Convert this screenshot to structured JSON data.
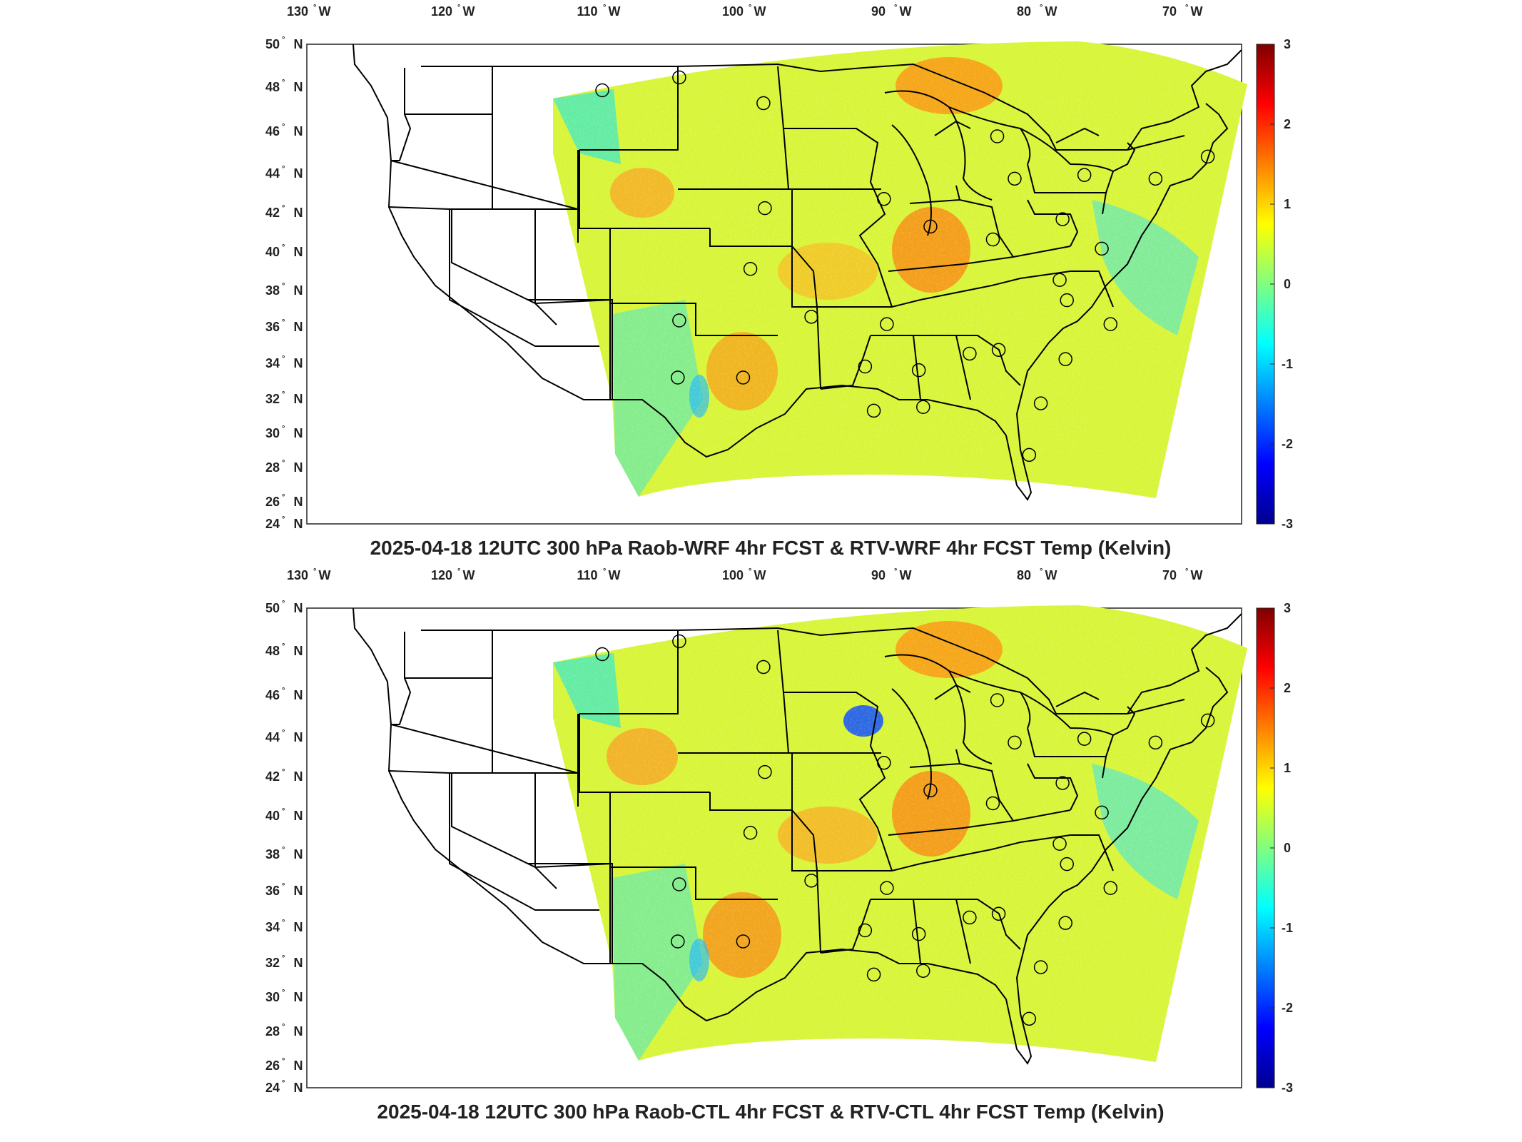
{
  "panels": [
    {
      "title": "2025-04-18 12UTC 300 hPa Raob-WRF 4hr FCST & RTV-WRF 4hr FCST Temp (Kelvin)",
      "lon_ticks": [
        "130",
        "120",
        "110",
        "100",
        "90",
        "80",
        "70"
      ],
      "lon_hemi": "W",
      "lat_ticks": [
        "50",
        "48",
        "46",
        "44",
        "42",
        "40",
        "38",
        "36",
        "34",
        "32",
        "30",
        "28",
        "26",
        "24"
      ],
      "lat_hemi": "N",
      "colorbar_ticks": [
        "3",
        "2",
        "1",
        "0",
        "-1",
        "-2",
        "-3"
      ]
    },
    {
      "title": "2025-04-18 12UTC 300 hPa Raob-CTL 4hr FCST & RTV-CTL 4hr FCST Temp (Kelvin)",
      "lon_ticks": [
        "130",
        "120",
        "110",
        "100",
        "90",
        "80",
        "70"
      ],
      "lon_hemi": "W",
      "lat_ticks": [
        "50",
        "48",
        "46",
        "44",
        "42",
        "40",
        "38",
        "36",
        "34",
        "32",
        "30",
        "28",
        "26",
        "24"
      ],
      "lat_hemi": "N",
      "colorbar_ticks": [
        "3",
        "2",
        "1",
        "0",
        "-1",
        "-2",
        "-3"
      ]
    }
  ],
  "colormap": [
    "#00008f",
    "#0000ff",
    "#00ffff",
    "#ffff00",
    "#ff0000",
    "#800000"
  ],
  "outline_color": "#000000",
  "map_background": "#ffffff",
  "raob_stations": [
    {
      "lon": -111.9,
      "lat": 47.5
    },
    {
      "lon": -106.6,
      "lat": 48.2
    },
    {
      "lon": -100.8,
      "lat": 46.8
    },
    {
      "lon": -84.7,
      "lat": 45.0
    },
    {
      "lon": -70.2,
      "lat": 43.9
    },
    {
      "lon": -83.5,
      "lat": 42.7
    },
    {
      "lon": -78.7,
      "lat": 42.9
    },
    {
      "lon": -73.8,
      "lat": 42.7
    },
    {
      "lon": -92.5,
      "lat": 41.6
    },
    {
      "lon": -100.7,
      "lat": 41.1
    },
    {
      "lon": -89.3,
      "lat": 40.1
    },
    {
      "lon": -80.2,
      "lat": 40.5
    },
    {
      "lon": -85.0,
      "lat": 39.4
    },
    {
      "lon": -77.5,
      "lat": 38.9
    },
    {
      "lon": -101.7,
      "lat": 37.8
    },
    {
      "lon": -80.4,
      "lat": 37.2
    },
    {
      "lon": -79.9,
      "lat": 36.1
    },
    {
      "lon": -106.6,
      "lat": 35.0
    },
    {
      "lon": -97.5,
      "lat": 35.2
    },
    {
      "lon": -92.3,
      "lat": 34.8
    },
    {
      "lon": -76.9,
      "lat": 34.8
    },
    {
      "lon": -86.6,
      "lat": 33.2
    },
    {
      "lon": -84.6,
      "lat": 33.4
    },
    {
      "lon": -93.8,
      "lat": 32.5
    },
    {
      "lon": -90.1,
      "lat": 32.3
    },
    {
      "lon": -80.0,
      "lat": 32.9
    },
    {
      "lon": -106.7,
      "lat": 31.9
    },
    {
      "lon": -102.2,
      "lat": 31.9
    },
    {
      "lon": -81.7,
      "lat": 30.5
    },
    {
      "lon": -89.8,
      "lat": 30.3
    },
    {
      "lon": -93.2,
      "lat": 30.1
    },
    {
      "lon": -82.5,
      "lat": 27.7
    }
  ]
}
